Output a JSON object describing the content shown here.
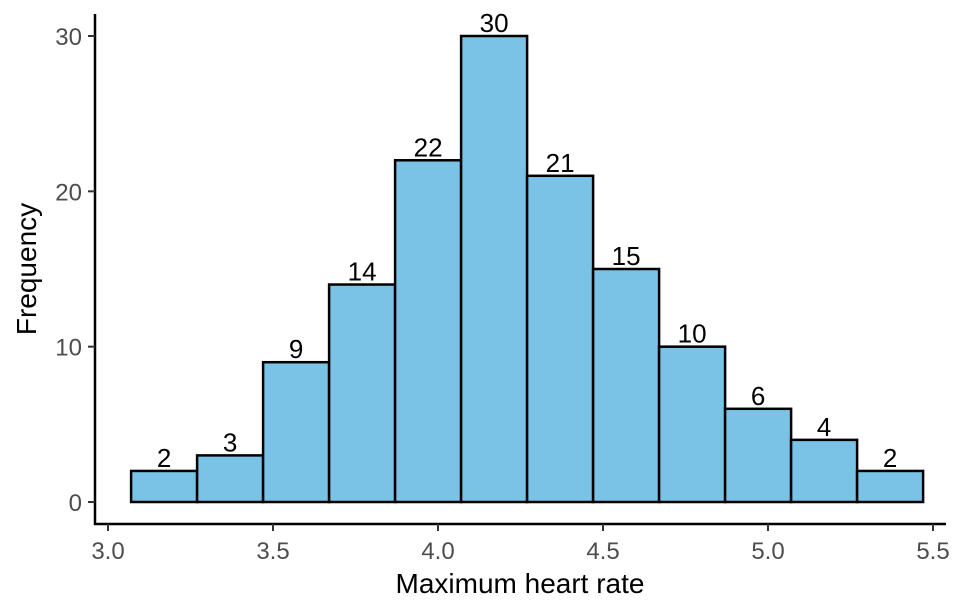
{
  "chart_data": {
    "type": "bar",
    "subtype": "histogram",
    "xlabel": "Maximum heart rate",
    "ylabel": "Frequency",
    "xlim": [
      3.0,
      5.5
    ],
    "ylim": [
      0,
      30
    ],
    "x_ticks": [
      "3.0",
      "3.5",
      "4.0",
      "4.5",
      "5.0",
      "5.5"
    ],
    "y_ticks": [
      "0",
      "10",
      "20",
      "30"
    ],
    "bin_width": 0.2,
    "bin_starts": [
      3.07,
      3.27,
      3.47,
      3.67,
      3.87,
      4.07,
      4.27,
      4.47,
      4.67,
      4.87,
      5.07,
      5.27
    ],
    "values": [
      2,
      3,
      9,
      14,
      22,
      30,
      21,
      15,
      10,
      6,
      4,
      2
    ],
    "labels": [
      "2",
      "3",
      "9",
      "14",
      "22",
      "30",
      "21",
      "15",
      "10",
      "6",
      "4",
      "2"
    ],
    "fill_color": "#7bc3e6",
    "edge_color": "#000000",
    "grid": false,
    "legend": "none"
  }
}
